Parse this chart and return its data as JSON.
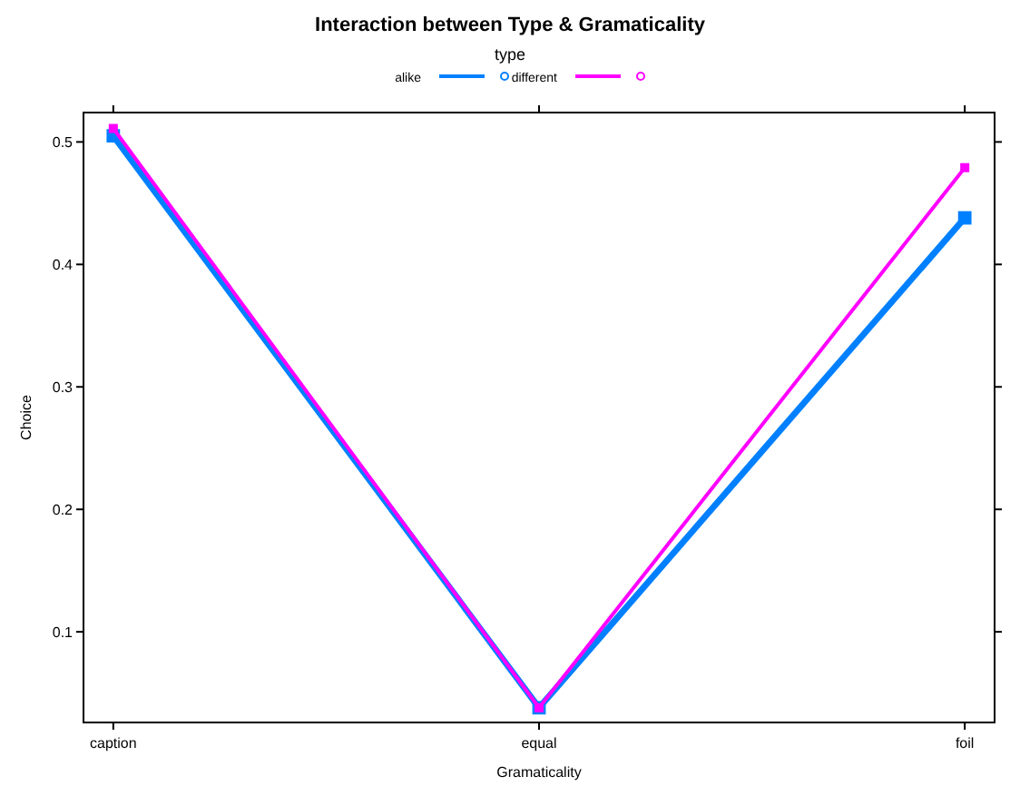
{
  "chart_data": {
    "type": "line",
    "title": "Interaction between Type & Gramaticality",
    "legend_title": "type",
    "xlabel": "Gramaticality",
    "ylabel": "Choice",
    "categories": [
      "caption",
      "equal",
      "foil"
    ],
    "series": [
      {
        "name": "alike",
        "color": "#0080ff",
        "values": [
          0.505,
          0.038,
          0.438
        ]
      },
      {
        "name": "different",
        "color": "#ff00ff",
        "values": [
          0.511,
          0.038,
          0.479
        ]
      }
    ],
    "ylim": [
      0.026,
      0.524
    ],
    "yticks": [
      0.1,
      0.2,
      0.3,
      0.4,
      0.5
    ],
    "marker": "square",
    "legend": "top",
    "grid": false
  }
}
